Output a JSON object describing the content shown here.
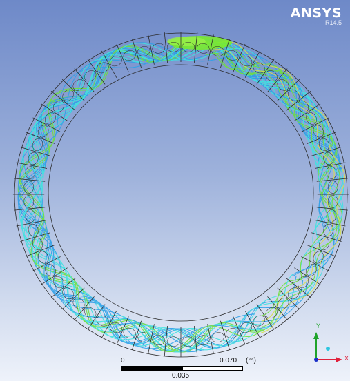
{
  "brand": {
    "name": "ANSYS",
    "version": "R14.5"
  },
  "scale_bar": {
    "start": "0",
    "mid": "0.035",
    "end": "0.070",
    "unit": "(m)"
  },
  "triad": {
    "y_axis": "Y",
    "x_axis": "X"
  },
  "colors": {
    "background_top": "#6e89c8",
    "background_bottom": "#eef2fa",
    "ring_wireframe": "#2a2a2a",
    "streamline_blue": "#2ea0e8",
    "streamline_cyan": "#3fe3e0",
    "streamline_green": "#6ee03a",
    "streamline_yellow": "#d8e04a"
  }
}
